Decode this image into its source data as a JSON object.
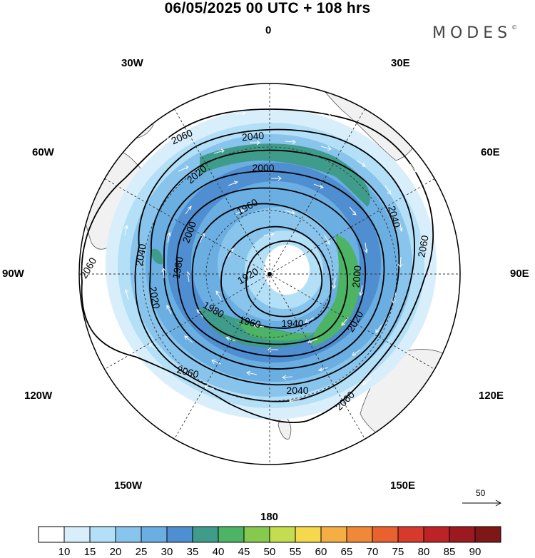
{
  "title": "06/05/2025  00 UTC  + 108 hrs",
  "brand": {
    "name": "MODES",
    "mark": "©"
  },
  "longitude_labels": {
    "l0": "0",
    "l30e": "30E",
    "l60e": "60E",
    "l90e": "90E",
    "l120e": "120E",
    "l150e": "150E",
    "l180": "180",
    "l150w": "150W",
    "l120w": "120W",
    "l90w": "90W",
    "l60w": "60W",
    "l30w": "30W"
  },
  "contours": {
    "c2060_outer": "2060",
    "c2060_left": "2060",
    "c2060_bottom": "2060",
    "c2060_right": "2060",
    "c2060_bright": "2060",
    "c2040_top": "2040",
    "c2040_right": "2040",
    "c2040_bottom": "2040",
    "c2040_left": "2040",
    "c2020_top": "2020",
    "c2020_left": "2020",
    "c2020_right": "2020",
    "c2000_top": "2000",
    "c2000_left": "2000",
    "c2000_right": "2000",
    "c1980_left": "1980",
    "c1980_bottom": "1980",
    "c1960_top": "1960",
    "c1960_bottom": "1960",
    "c1940": "1940",
    "c1920": "1920"
  },
  "reference_vector": "50",
  "colorbar": {
    "labels": [
      "10",
      "15",
      "20",
      "25",
      "30",
      "35",
      "40",
      "45",
      "50",
      "55",
      "60",
      "65",
      "70",
      "75",
      "80",
      "85",
      "90"
    ],
    "colors": [
      "#ffffff",
      "#d8eefb",
      "#b3dff7",
      "#88c4ec",
      "#6aaee2",
      "#4f8ed0",
      "#3f9c8a",
      "#4cb464",
      "#85c94f",
      "#c4dc4f",
      "#f5d84b",
      "#f4ae44",
      "#ef8937",
      "#e8612e",
      "#d73a2d",
      "#bb2327",
      "#9a1a20",
      "#7e1718"
    ]
  },
  "colors": {
    "land": "#f1f1f1",
    "coast": "#444444",
    "contour": "#000000",
    "arrow": "#ffffff"
  }
}
